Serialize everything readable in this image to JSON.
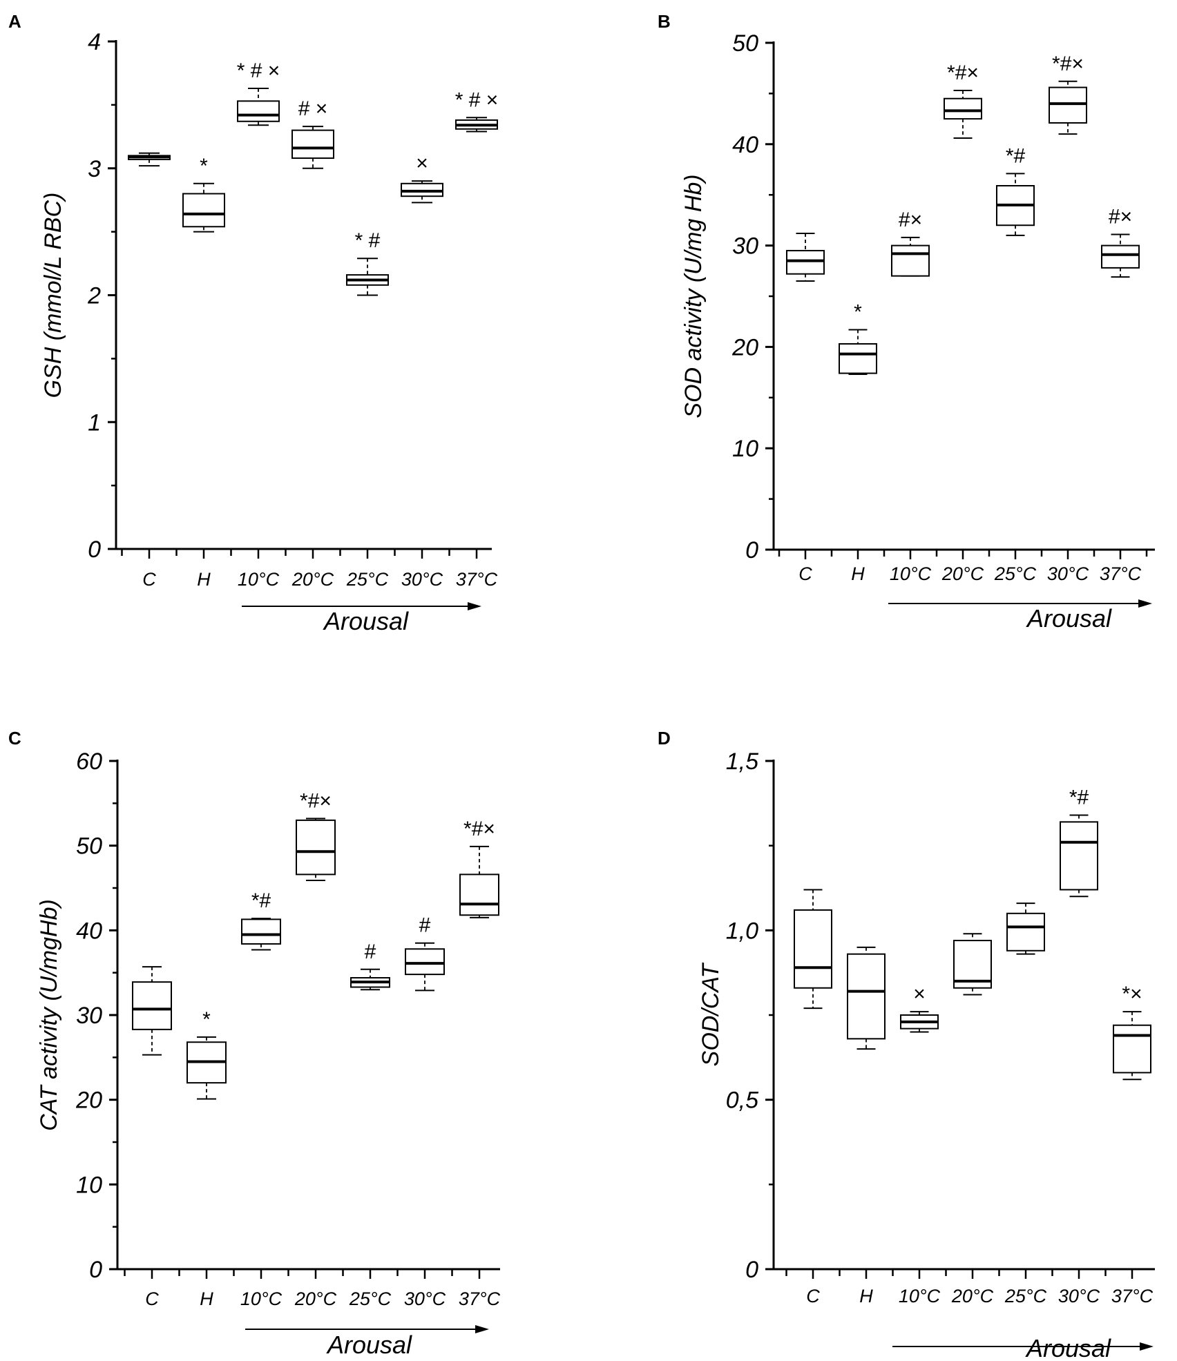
{
  "chart_data": [
    {
      "panel": "A",
      "type": "box",
      "ylabel": "GSH (mmol/L RBC)",
      "ylim": [
        0,
        4
      ],
      "yticks": [
        0,
        1,
        2,
        3,
        4
      ],
      "ytick_labels": [
        "0",
        "1",
        "2",
        "3",
        "4"
      ],
      "categories": [
        "C",
        "H",
        "10°C",
        "20°C",
        "25°C",
        "30°C",
        "37°C"
      ],
      "arrow_label": "Arousal",
      "boxes": [
        {
          "min": 3.02,
          "q1": 3.07,
          "median": 3.09,
          "q3": 3.1,
          "max": 3.12,
          "sig": ""
        },
        {
          "min": 2.5,
          "q1": 2.54,
          "median": 2.64,
          "q3": 2.8,
          "max": 2.88,
          "sig": "*"
        },
        {
          "min": 3.34,
          "q1": 3.37,
          "median": 3.42,
          "q3": 3.53,
          "max": 3.63,
          "sig": "* # ×"
        },
        {
          "min": 3.0,
          "q1": 3.08,
          "median": 3.16,
          "q3": 3.3,
          "max": 3.33,
          "sig": "# ×"
        },
        {
          "min": 2.0,
          "q1": 2.08,
          "median": 2.12,
          "q3": 2.16,
          "max": 2.29,
          "sig": "* #"
        },
        {
          "min": 2.73,
          "q1": 2.78,
          "median": 2.82,
          "q3": 2.88,
          "max": 2.9,
          "sig": "×"
        },
        {
          "min": 3.29,
          "q1": 3.31,
          "median": 3.34,
          "q3": 3.38,
          "max": 3.4,
          "sig": "* # ×"
        }
      ]
    },
    {
      "panel": "B",
      "type": "box",
      "ylabel": "SOD activity (U/mg Hb)",
      "ylim": [
        0,
        50
      ],
      "yticks": [
        0,
        10,
        20,
        30,
        40,
        50
      ],
      "ytick_labels": [
        "0",
        "10",
        "20",
        "30",
        "40",
        "50"
      ],
      "categories": [
        "C",
        "H",
        "10°C",
        "20°C",
        "25°C",
        "30°C",
        "37°C"
      ],
      "arrow_label": "Arousal",
      "boxes": [
        {
          "min": 26.5,
          "q1": 27.2,
          "median": 28.5,
          "q3": 29.5,
          "max": 31.2,
          "sig": ""
        },
        {
          "min": 17.3,
          "q1": 17.4,
          "median": 19.3,
          "q3": 20.3,
          "max": 21.7,
          "sig": "*"
        },
        {
          "min": 27.0,
          "q1": 27.0,
          "median": 29.2,
          "q3": 30.0,
          "max": 30.8,
          "sig": "#×"
        },
        {
          "min": 40.6,
          "q1": 42.5,
          "median": 43.3,
          "q3": 44.5,
          "max": 45.3,
          "sig": "*#×"
        },
        {
          "min": 31.0,
          "q1": 32.0,
          "median": 34.0,
          "q3": 35.9,
          "max": 37.1,
          "sig": "*#"
        },
        {
          "min": 41.0,
          "q1": 42.1,
          "median": 44.0,
          "q3": 45.6,
          "max": 46.2,
          "sig": "*#×"
        },
        {
          "min": 26.9,
          "q1": 27.8,
          "median": 29.1,
          "q3": 30.0,
          "max": 31.1,
          "sig": "#×"
        }
      ]
    },
    {
      "panel": "C",
      "type": "box",
      "ylabel": "CAT activity (U/mgHb)",
      "ylim": [
        0,
        60
      ],
      "yticks": [
        0,
        10,
        20,
        30,
        40,
        50,
        60
      ],
      "ytick_labels": [
        "0",
        "10",
        "20",
        "30",
        "40",
        "50",
        "60"
      ],
      "categories": [
        "C",
        "H",
        "10°C",
        "20°C",
        "25°C",
        "30°C",
        "37°C"
      ],
      "arrow_label": "Arousal",
      "boxes": [
        {
          "min": 25.3,
          "q1": 28.3,
          "median": 30.7,
          "q3": 33.9,
          "max": 35.7,
          "sig": ""
        },
        {
          "min": 20.1,
          "q1": 22.0,
          "median": 24.5,
          "q3": 26.8,
          "max": 27.4,
          "sig": "*"
        },
        {
          "min": 37.7,
          "q1": 38.4,
          "median": 39.5,
          "q3": 41.3,
          "max": 41.4,
          "sig": "*#"
        },
        {
          "min": 45.9,
          "q1": 46.6,
          "median": 49.3,
          "q3": 53.0,
          "max": 53.2,
          "sig": "*#×"
        },
        {
          "min": 33.0,
          "q1": 33.3,
          "median": 33.9,
          "q3": 34.4,
          "max": 35.4,
          "sig": "#"
        },
        {
          "min": 32.9,
          "q1": 34.8,
          "median": 36.1,
          "q3": 37.8,
          "max": 38.5,
          "sig": "#"
        },
        {
          "min": 41.5,
          "q1": 41.8,
          "median": 43.1,
          "q3": 46.6,
          "max": 49.9,
          "sig": "*#×"
        }
      ]
    },
    {
      "panel": "D",
      "type": "box",
      "ylabel": "SOD/CAT",
      "ylim": [
        0,
        1.5
      ],
      "yticks": [
        0,
        0.5,
        1.0,
        1.5
      ],
      "ytick_labels": [
        "0",
        "0,5",
        "1,0",
        "1,5"
      ],
      "categories": [
        "C",
        "H",
        "10°C",
        "20°C",
        "25°C",
        "30°C",
        "37°C"
      ],
      "arrow_label": "Arousal",
      "boxes": [
        {
          "min": 0.77,
          "q1": 0.83,
          "median": 0.89,
          "q3": 1.06,
          "max": 1.12,
          "sig": ""
        },
        {
          "min": 0.65,
          "q1": 0.68,
          "median": 0.82,
          "q3": 0.93,
          "max": 0.95,
          "sig": ""
        },
        {
          "min": 0.7,
          "q1": 0.71,
          "median": 0.73,
          "q3": 0.75,
          "max": 0.76,
          "sig": "×"
        },
        {
          "min": 0.81,
          "q1": 0.83,
          "median": 0.85,
          "q3": 0.97,
          "max": 0.99,
          "sig": ""
        },
        {
          "min": 0.93,
          "q1": 0.94,
          "median": 1.01,
          "q3": 1.05,
          "max": 1.08,
          "sig": ""
        },
        {
          "min": 1.1,
          "q1": 1.12,
          "median": 1.26,
          "q3": 1.32,
          "max": 1.34,
          "sig": "*#"
        },
        {
          "min": 0.56,
          "q1": 0.58,
          "median": 0.69,
          "q3": 0.72,
          "max": 0.76,
          "sig": "*×"
        }
      ]
    }
  ]
}
